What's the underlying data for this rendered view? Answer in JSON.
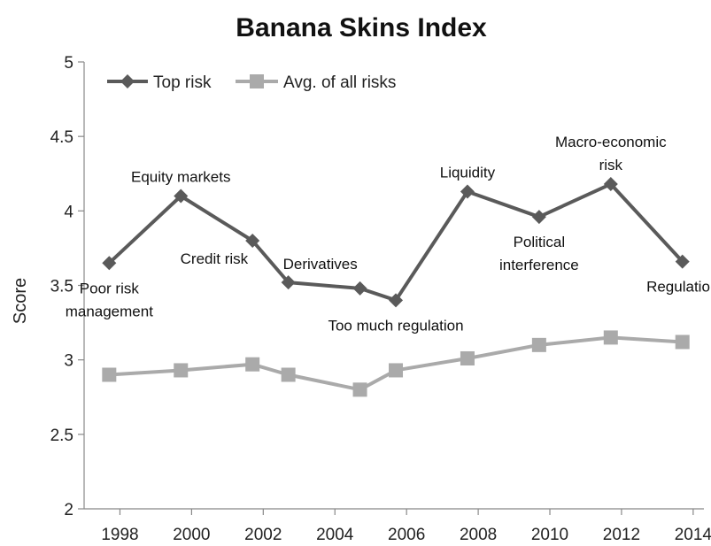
{
  "chart_data": {
    "type": "line",
    "title": "Banana Skins Index",
    "xlabel": "",
    "ylabel": "Score",
    "x": [
      1998,
      2000,
      2002,
      2003,
      2005,
      2006,
      2008,
      2010,
      2012,
      2014
    ],
    "x_ticks": [
      "1998",
      "2000",
      "2002",
      "2004",
      "2006",
      "2008",
      "2010",
      "2012",
      "2014"
    ],
    "y_ticks": [
      "2",
      "2.5",
      "3",
      "3.5",
      "4",
      "4.5",
      "5"
    ],
    "ylim": [
      2,
      5
    ],
    "grid": false,
    "legend_position": "top-left",
    "series": [
      {
        "name": "Top risk",
        "color": "#5a5a5a",
        "marker": "diamond",
        "points": [
          {
            "x": 1997.7,
            "y": 3.65
          },
          {
            "x": 1999.7,
            "y": 4.1
          },
          {
            "x": 2001.7,
            "y": 3.8
          },
          {
            "x": 2002.7,
            "y": 3.52
          },
          {
            "x": 2004.7,
            "y": 3.48
          },
          {
            "x": 2005.7,
            "y": 3.4
          },
          {
            "x": 2007.7,
            "y": 4.13
          },
          {
            "x": 2009.7,
            "y": 3.96
          },
          {
            "x": 2011.7,
            "y": 4.18
          },
          {
            "x": 2013.7,
            "y": 3.66
          }
        ]
      },
      {
        "name": "Avg. of all risks",
        "color": "#aaaaaa",
        "marker": "square",
        "points": [
          {
            "x": 1997.7,
            "y": 2.9
          },
          {
            "x": 1999.7,
            "y": 2.93
          },
          {
            "x": 2001.7,
            "y": 2.97
          },
          {
            "x": 2002.7,
            "y": 2.9
          },
          {
            "x": 2004.7,
            "y": 2.8
          },
          {
            "x": 2005.7,
            "y": 2.93
          },
          {
            "x": 2007.7,
            "y": 3.01
          },
          {
            "x": 2009.7,
            "y": 3.1
          },
          {
            "x": 2011.7,
            "y": 3.15
          },
          {
            "x": 2013.7,
            "y": 3.12
          }
        ]
      }
    ],
    "annotations": [
      {
        "lines": [
          "Poor risk",
          "management"
        ],
        "point": 0,
        "position": "below"
      },
      {
        "lines": [
          "Equity markets"
        ],
        "point": 1,
        "position": "above"
      },
      {
        "lines": [
          "Credit risk"
        ],
        "point": 2,
        "position": "below-left"
      },
      {
        "lines": [
          "Derivatives"
        ],
        "point": 3,
        "position": "above-right"
      },
      {
        "lines": [
          "Too much regulation"
        ],
        "point": 5,
        "position": "below"
      },
      {
        "lines": [
          "Liquidity"
        ],
        "point": 6,
        "position": "above"
      },
      {
        "lines": [
          "Political",
          "interference"
        ],
        "point": 7,
        "position": "below"
      },
      {
        "lines": [
          "Macro-economic",
          "risk"
        ],
        "point": 8,
        "position": "above"
      },
      {
        "lines": [
          "Regulation"
        ],
        "point": 9,
        "position": "below"
      }
    ]
  }
}
